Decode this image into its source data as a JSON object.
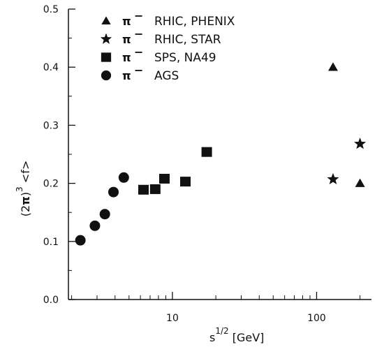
{
  "chart_data": {
    "type": "scatter",
    "xscale": "log",
    "xlim": [
      1.9,
      240
    ],
    "ylim": [
      0,
      0.5
    ],
    "xlabel": {
      "base": "s",
      "sup": "1/2",
      "rest": " [GeV]"
    },
    "ylabel": {
      "pre": "(2",
      "pi": "π",
      "post": ")",
      "sup": "3",
      "rest": " <f>"
    },
    "x_ticks": [
      {
        "value": 10,
        "label": "10"
      },
      {
        "value": 100,
        "label": "100"
      }
    ],
    "y_ticks": [
      {
        "value": 0.0,
        "label": "0.0"
      },
      {
        "value": 0.1,
        "label": "0.1"
      },
      {
        "value": 0.2,
        "label": "0.2"
      },
      {
        "value": 0.3,
        "label": "0.3"
      },
      {
        "value": 0.4,
        "label": "0.4"
      },
      {
        "value": 0.5,
        "label": "0.5"
      }
    ],
    "legend_position": "top-left",
    "grid": false,
    "series": [
      {
        "name": "RHIC, PHENIX",
        "particle": "π",
        "charge": "−",
        "marker": "triangle",
        "points": [
          {
            "x": 130,
            "y": 0.4
          },
          {
            "x": 200,
            "y": 0.2
          }
        ]
      },
      {
        "name": "RHIC, STAR",
        "particle": "π",
        "charge": "−",
        "marker": "star",
        "points": [
          {
            "x": 130,
            "y": 0.207
          },
          {
            "x": 200,
            "y": 0.268
          }
        ]
      },
      {
        "name": "SPS, NA49",
        "particle": "π",
        "charge": "−",
        "marker": "square",
        "points": [
          {
            "x": 6.3,
            "y": 0.189
          },
          {
            "x": 7.6,
            "y": 0.19
          },
          {
            "x": 8.8,
            "y": 0.208
          },
          {
            "x": 12.3,
            "y": 0.203
          },
          {
            "x": 17.3,
            "y": 0.254
          }
        ]
      },
      {
        "name": "AGS",
        "particle": "π",
        "charge": "−",
        "marker": "circle",
        "points": [
          {
            "x": 2.3,
            "y": 0.102
          },
          {
            "x": 2.9,
            "y": 0.127
          },
          {
            "x": 3.4,
            "y": 0.147
          },
          {
            "x": 3.9,
            "y": 0.185
          },
          {
            "x": 4.6,
            "y": 0.21
          }
        ]
      }
    ]
  }
}
